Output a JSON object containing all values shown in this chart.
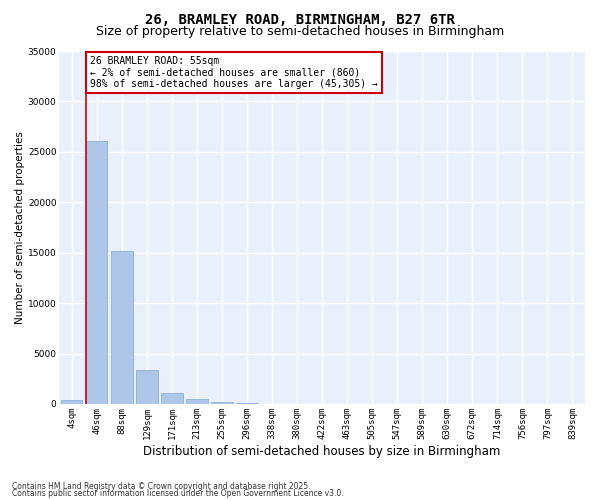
{
  "title_line1": "26, BRAMLEY ROAD, BIRMINGHAM, B27 6TR",
  "title_line2": "Size of property relative to semi-detached houses in Birmingham",
  "xlabel": "Distribution of semi-detached houses by size in Birmingham",
  "ylabel": "Number of semi-detached properties",
  "categories": [
    "4sqm",
    "46sqm",
    "88sqm",
    "129sqm",
    "171sqm",
    "213sqm",
    "255sqm",
    "296sqm",
    "338sqm",
    "380sqm",
    "422sqm",
    "463sqm",
    "505sqm",
    "547sqm",
    "589sqm",
    "630sqm",
    "672sqm",
    "714sqm",
    "756sqm",
    "797sqm",
    "839sqm"
  ],
  "values": [
    350,
    26100,
    15200,
    3350,
    1050,
    500,
    200,
    80,
    0,
    0,
    0,
    0,
    0,
    0,
    0,
    0,
    0,
    0,
    0,
    0,
    0
  ],
  "bar_color_normal": "#aec6e8",
  "bar_edge_color": "#7fa8d4",
  "annotation_text": "26 BRAMLEY ROAD: 55sqm\n← 2% of semi-detached houses are smaller (860)\n98% of semi-detached houses are larger (45,305) →",
  "annotation_box_color": "#cc0000",
  "red_line_color": "#cc0000",
  "background_color": "#eaf0fb",
  "grid_color": "#ffffff",
  "footer_line1": "Contains HM Land Registry data © Crown copyright and database right 2025.",
  "footer_line2": "Contains public sector information licensed under the Open Government Licence v3.0.",
  "ylim": [
    0,
    35000
  ],
  "yticks": [
    0,
    5000,
    10000,
    15000,
    20000,
    25000,
    30000,
    35000
  ],
  "title_fontsize": 10,
  "subtitle_fontsize": 9,
  "tick_fontsize": 6.5,
  "ylabel_fontsize": 7.5,
  "xlabel_fontsize": 8.5,
  "annotation_fontsize": 7,
  "footer_fontsize": 5.5
}
